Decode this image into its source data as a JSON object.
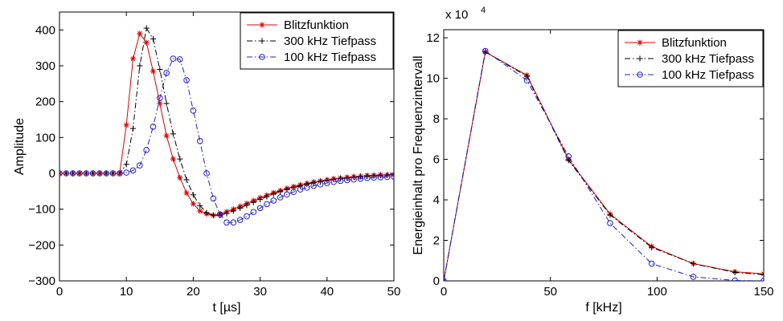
{
  "chart_data": [
    {
      "type": "line",
      "xlabel": "t [µs]",
      "ylabel": "Amplitude",
      "xlim": [
        0,
        50
      ],
      "ylim": [
        -300,
        450
      ],
      "xticks": [
        "0",
        "10",
        "20",
        "30",
        "40",
        "50"
      ],
      "yticks": [
        "−300",
        "−200",
        "−100",
        "0",
        "100",
        "200",
        "300",
        "400"
      ],
      "grid": false,
      "legend_position": "top-right",
      "series": [
        {
          "name": "Blitzfunktion",
          "color": "#dd0000",
          "line_style": "solid",
          "marker": "asterisk",
          "points": [
            [
              0,
              0
            ],
            [
              1,
              0
            ],
            [
              2,
              0
            ],
            [
              3,
              0
            ],
            [
              4,
              0
            ],
            [
              5,
              0
            ],
            [
              6,
              0
            ],
            [
              7,
              0
            ],
            [
              8,
              0
            ],
            [
              9,
              0
            ],
            [
              10,
              135
            ],
            [
              11,
              320
            ],
            [
              12,
              390
            ],
            [
              13,
              365
            ],
            [
              14,
              285
            ],
            [
              15,
              195
            ],
            [
              16,
              105
            ],
            [
              17,
              40
            ],
            [
              18,
              -12
            ],
            [
              19,
              -55
            ],
            [
              20,
              -85
            ],
            [
              21,
              -105
            ],
            [
              22,
              -113
            ],
            [
              23,
              -117
            ],
            [
              24,
              -113
            ],
            [
              25,
              -107
            ],
            [
              26,
              -100
            ],
            [
              27,
              -92
            ],
            [
              28,
              -84
            ],
            [
              29,
              -76
            ],
            [
              30,
              -68
            ],
            [
              31,
              -61
            ],
            [
              32,
              -54
            ],
            [
              33,
              -48
            ],
            [
              34,
              -42
            ],
            [
              35,
              -37
            ],
            [
              36,
              -32
            ],
            [
              37,
              -28
            ],
            [
              38,
              -24
            ],
            [
              39,
              -21
            ],
            [
              40,
              -18
            ],
            [
              41,
              -15
            ],
            [
              42,
              -13
            ],
            [
              43,
              -11
            ],
            [
              44,
              -9
            ],
            [
              45,
              -8
            ],
            [
              46,
              -6
            ],
            [
              47,
              -5
            ],
            [
              48,
              -4
            ],
            [
              49,
              -4
            ],
            [
              50,
              -3
            ]
          ]
        },
        {
          "name": "300 kHz Tiefpass",
          "color": "#000000",
          "line_style": "dashdot",
          "marker": "plus",
          "points": [
            [
              0,
              0
            ],
            [
              1,
              0
            ],
            [
              2,
              0
            ],
            [
              3,
              0
            ],
            [
              4,
              0
            ],
            [
              5,
              0
            ],
            [
              6,
              0
            ],
            [
              7,
              0
            ],
            [
              8,
              0
            ],
            [
              9,
              0
            ],
            [
              10,
              25
            ],
            [
              11,
              125
            ],
            [
              12,
              300
            ],
            [
              13,
              405
            ],
            [
              14,
              375
            ],
            [
              15,
              290
            ],
            [
              16,
              195
            ],
            [
              17,
              110
            ],
            [
              18,
              40
            ],
            [
              19,
              -18
            ],
            [
              20,
              -60
            ],
            [
              21,
              -90
            ],
            [
              22,
              -110
            ],
            [
              23,
              -117
            ],
            [
              24,
              -117
            ],
            [
              25,
              -112
            ],
            [
              26,
              -105
            ],
            [
              27,
              -97
            ],
            [
              28,
              -89
            ],
            [
              29,
              -81
            ],
            [
              30,
              -73
            ],
            [
              31,
              -65
            ],
            [
              32,
              -58
            ],
            [
              33,
              -51
            ],
            [
              34,
              -45
            ],
            [
              35,
              -40
            ],
            [
              36,
              -35
            ],
            [
              37,
              -30
            ],
            [
              38,
              -26
            ],
            [
              39,
              -23
            ],
            [
              40,
              -20
            ],
            [
              41,
              -17
            ],
            [
              42,
              -15
            ],
            [
              43,
              -13
            ],
            [
              44,
              -11
            ],
            [
              45,
              -9
            ],
            [
              46,
              -8
            ],
            [
              47,
              -7
            ],
            [
              48,
              -6
            ],
            [
              49,
              -5
            ],
            [
              50,
              -4
            ]
          ]
        },
        {
          "name": "100 kHz Tiefpass",
          "color": "#2020cc",
          "line_style": "dashdot",
          "marker": "circle",
          "points": [
            [
              0,
              0
            ],
            [
              1,
              0
            ],
            [
              2,
              0
            ],
            [
              3,
              0
            ],
            [
              4,
              0
            ],
            [
              5,
              0
            ],
            [
              6,
              0
            ],
            [
              7,
              0
            ],
            [
              8,
              0
            ],
            [
              9,
              0
            ],
            [
              10,
              2
            ],
            [
              11,
              8
            ],
            [
              12,
              22
            ],
            [
              13,
              65
            ],
            [
              14,
              130
            ],
            [
              15,
              210
            ],
            [
              16,
              280
            ],
            [
              17,
              320
            ],
            [
              18,
              318
            ],
            [
              19,
              260
            ],
            [
              20,
              175
            ],
            [
              21,
              90
            ],
            [
              22,
              0
            ],
            [
              23,
              -70
            ],
            [
              24,
              -115
            ],
            [
              25,
              -137
            ],
            [
              26,
              -137
            ],
            [
              27,
              -130
            ],
            [
              28,
              -120
            ],
            [
              29,
              -108
            ],
            [
              30,
              -97
            ],
            [
              31,
              -86
            ],
            [
              32,
              -76
            ],
            [
              33,
              -67
            ],
            [
              34,
              -59
            ],
            [
              35,
              -52
            ],
            [
              36,
              -45
            ],
            [
              37,
              -40
            ],
            [
              38,
              -35
            ],
            [
              39,
              -31
            ],
            [
              40,
              -27
            ],
            [
              41,
              -24
            ],
            [
              42,
              -21
            ],
            [
              43,
              -19
            ],
            [
              44,
              -17
            ],
            [
              45,
              -15
            ],
            [
              46,
              -13
            ],
            [
              47,
              -12
            ],
            [
              48,
              -11
            ],
            [
              49,
              -10
            ],
            [
              50,
              -9
            ]
          ]
        }
      ]
    },
    {
      "type": "line",
      "xlabel": "f [kHz]",
      "ylabel": "Energieinhalt pro Frequenzintervall",
      "exponent_label": "x 10",
      "exponent_power": "4",
      "xlim": [
        0,
        150
      ],
      "ylim": [
        0,
        12.4
      ],
      "y_multiplier": 10000,
      "xticks": [
        "0",
        "50",
        "100",
        "150"
      ],
      "yticks": [
        "0",
        "2",
        "4",
        "6",
        "8",
        "10",
        "12"
      ],
      "grid": false,
      "legend_position": "top-right",
      "series": [
        {
          "name": "Blitzfunktion",
          "color": "#dd0000",
          "line_style": "solid",
          "marker": "asterisk",
          "points": [
            [
              0,
              0
            ],
            [
              19.5,
              11.3
            ],
            [
              39,
              10.15
            ],
            [
              58.5,
              6.0
            ],
            [
              78,
              3.3
            ],
            [
              97.5,
              1.7
            ],
            [
              117,
              0.85
            ],
            [
              136.5,
              0.45
            ],
            [
              150,
              0.35
            ]
          ]
        },
        {
          "name": "300 kHz Tiefpass",
          "color": "#000000",
          "line_style": "dashdot",
          "marker": "plus",
          "points": [
            [
              0,
              0
            ],
            [
              19.5,
              11.3
            ],
            [
              39,
              10.1
            ],
            [
              58.5,
              5.95
            ],
            [
              78,
              3.25
            ],
            [
              97.5,
              1.65
            ],
            [
              117,
              0.85
            ],
            [
              136.5,
              0.42
            ],
            [
              150,
              0.3
            ]
          ]
        },
        {
          "name": "100 kHz Tiefpass",
          "color": "#2020cc",
          "line_style": "dashdot",
          "marker": "circle",
          "points": [
            [
              0,
              0
            ],
            [
              19.5,
              11.35
            ],
            [
              39,
              9.9
            ],
            [
              58.5,
              6.15
            ],
            [
              78,
              2.85
            ],
            [
              97.5,
              0.85
            ],
            [
              117,
              0.2
            ],
            [
              136.5,
              0.02
            ],
            [
              150,
              0.0
            ]
          ]
        }
      ]
    }
  ]
}
